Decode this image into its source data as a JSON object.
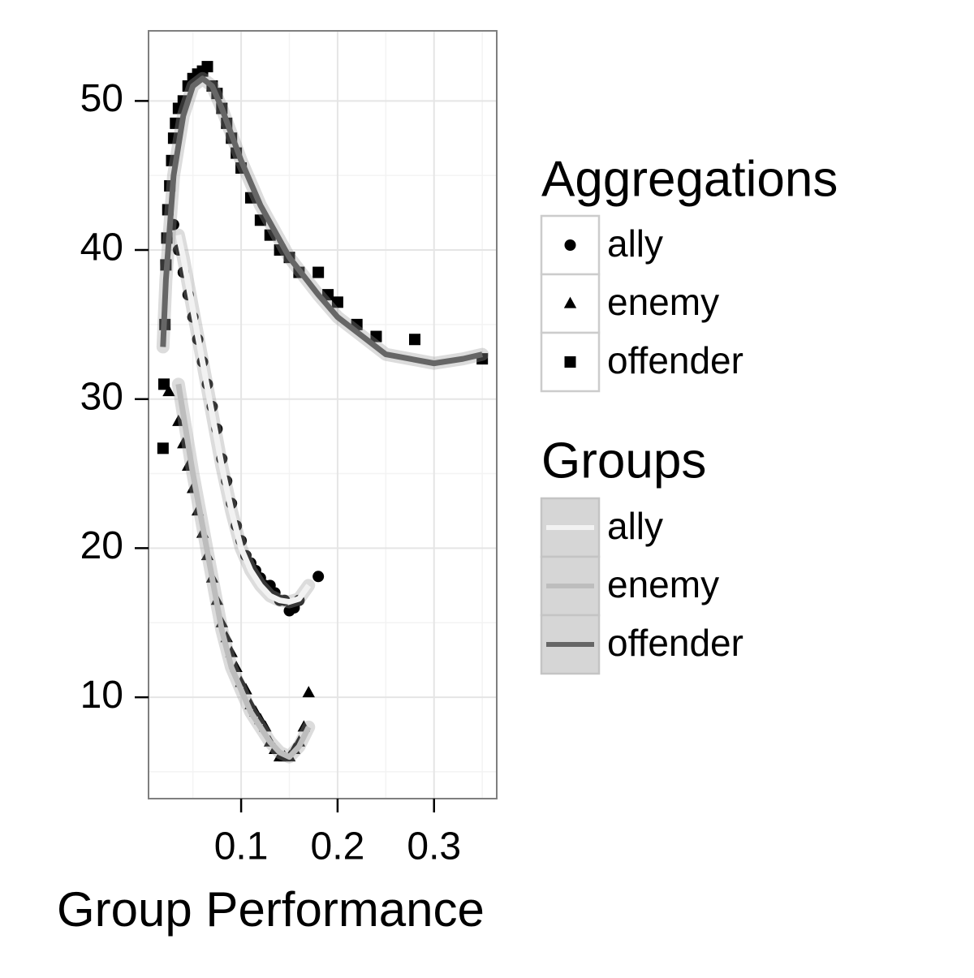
{
  "chart_data": {
    "type": "scatter",
    "x_label": "Group Performance",
    "xlim": [
      0.004,
      0.365
    ],
    "ylim": [
      3.2,
      54.7
    ],
    "xticks": [
      0.1,
      0.2,
      0.3
    ],
    "yticks": [
      10,
      20,
      30,
      40,
      50
    ],
    "xminor": [
      0.05,
      0.15,
      0.25,
      0.35
    ],
    "yminor": [
      5,
      15,
      25,
      35,
      45
    ],
    "grid": true,
    "legend_position": "right",
    "points_legend_title": "Aggregations",
    "lines_legend_title": "Groups",
    "series": [
      {
        "name": "ally",
        "shape": "circle",
        "color": "#000000",
        "x": [
          0.03,
          0.035,
          0.04,
          0.045,
          0.05,
          0.055,
          0.06,
          0.065,
          0.07,
          0.075,
          0.08,
          0.085,
          0.09,
          0.095,
          0.1,
          0.105,
          0.11,
          0.115,
          0.12,
          0.125,
          0.13,
          0.135,
          0.14,
          0.145,
          0.15,
          0.155,
          0.16,
          0.18
        ],
        "y": [
          41.7,
          40,
          38.5,
          37,
          35.5,
          34,
          32.5,
          31,
          29.5,
          28,
          26,
          24.5,
          23,
          21.5,
          20.5,
          19.5,
          19,
          18.5,
          18,
          17.5,
          17.5,
          17,
          16.5,
          16.5,
          15.8,
          16,
          16.5,
          18.1
        ]
      },
      {
        "name": "enemy",
        "shape": "triangle",
        "color": "#000000",
        "x": [
          0.025,
          0.035,
          0.04,
          0.045,
          0.05,
          0.055,
          0.06,
          0.065,
          0.07,
          0.075,
          0.08,
          0.085,
          0.09,
          0.095,
          0.1,
          0.105,
          0.11,
          0.115,
          0.12,
          0.125,
          0.13,
          0.135,
          0.14,
          0.145,
          0.15,
          0.155,
          0.16,
          0.165,
          0.17
        ],
        "y": [
          30.5,
          28.5,
          27,
          25.5,
          24,
          22.5,
          21,
          19.5,
          18,
          16.5,
          15,
          14,
          13,
          12,
          11,
          10.5,
          9.5,
          9,
          8.5,
          8,
          7,
          6.5,
          6,
          6,
          6,
          6.5,
          7,
          8,
          10.3
        ]
      },
      {
        "name": "offender",
        "shape": "square",
        "color": "#000000",
        "x": [
          0.019,
          0.02,
          0.021,
          0.022,
          0.023,
          0.024,
          0.026,
          0.028,
          0.03,
          0.032,
          0.035,
          0.04,
          0.045,
          0.05,
          0.055,
          0.06,
          0.065,
          0.07,
          0.075,
          0.08,
          0.085,
          0.09,
          0.095,
          0.1,
          0.11,
          0.12,
          0.13,
          0.14,
          0.15,
          0.16,
          0.18,
          0.19,
          0.2,
          0.22,
          0.24,
          0.28,
          0.35
        ],
        "y": [
          26.7,
          31,
          35,
          39,
          40.8,
          42.7,
          44.3,
          46,
          47.5,
          48.5,
          49.5,
          50,
          51,
          51.5,
          51.8,
          52,
          52.3,
          51,
          50.5,
          49.5,
          48.5,
          47.5,
          46.5,
          45.5,
          43.5,
          42,
          41,
          40,
          39.5,
          38.5,
          38.5,
          37,
          36.5,
          35,
          34.2,
          34,
          32.7
        ]
      }
    ],
    "smooth": [
      {
        "name": "ally",
        "color": "#f2f2f2",
        "x": [
          0.035,
          0.04,
          0.05,
          0.06,
          0.07,
          0.08,
          0.09,
          0.1,
          0.11,
          0.12,
          0.13,
          0.14,
          0.15,
          0.16,
          0.17
        ],
        "y": [
          41,
          39.5,
          36,
          32.5,
          29,
          25.5,
          22.5,
          20,
          18.5,
          17.5,
          16.8,
          16.5,
          16.4,
          16.6,
          17.5
        ]
      },
      {
        "name": "enemy",
        "color": "#bdbdbd",
        "x": [
          0.035,
          0.04,
          0.05,
          0.06,
          0.07,
          0.08,
          0.09,
          0.1,
          0.11,
          0.12,
          0.13,
          0.14,
          0.15,
          0.16,
          0.17
        ],
        "y": [
          31,
          29,
          25,
          21.5,
          18,
          14.5,
          12,
          10.5,
          9,
          8,
          7,
          6.3,
          6,
          6.7,
          8
        ]
      },
      {
        "name": "offender",
        "color": "#666666",
        "x": [
          0.019,
          0.022,
          0.03,
          0.04,
          0.05,
          0.06,
          0.07,
          0.08,
          0.1,
          0.12,
          0.15,
          0.18,
          0.2,
          0.25,
          0.3,
          0.33,
          0.35
        ],
        "y": [
          33.5,
          38,
          45,
          49,
          51,
          51.5,
          51,
          49.5,
          46,
          43,
          39.5,
          37,
          35.5,
          33,
          32.4,
          32.7,
          33
        ]
      }
    ]
  }
}
